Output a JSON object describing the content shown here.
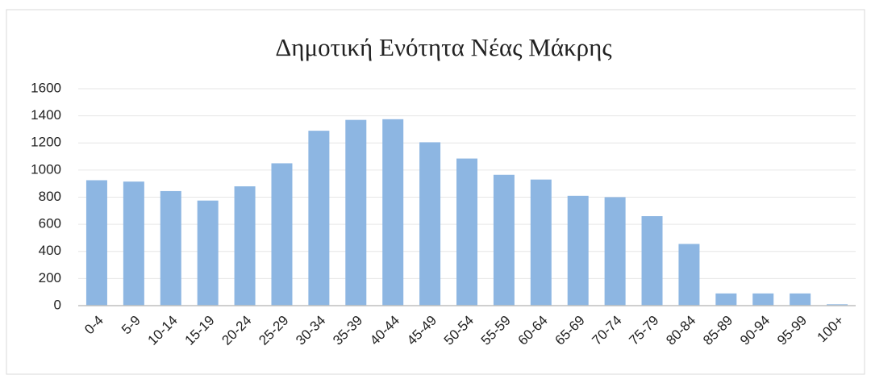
{
  "chart_data": {
    "type": "bar",
    "title": "Δημοτική Ενότητα Νέας Μάκρης",
    "categories": [
      "0-4",
      "5-9",
      "10-14",
      "15-19",
      "20-24",
      "25-29",
      "30-34",
      "35-39",
      "40-44",
      "45-49",
      "50-54",
      "55-59",
      "60-64",
      "65-69",
      "70-74",
      "75-79",
      "80-84",
      "85-89",
      "90-94",
      "95-99",
      "100+"
    ],
    "values": [
      925,
      915,
      845,
      775,
      880,
      1050,
      1290,
      1370,
      1375,
      1205,
      1085,
      965,
      930,
      810,
      800,
      660,
      455,
      90,
      90,
      90,
      10
    ],
    "color": "#8db6e2",
    "ylim": [
      0,
      1600
    ],
    "yticks": [
      0,
      200,
      400,
      600,
      800,
      1000,
      1200,
      1400,
      1600
    ],
    "grid": true
  }
}
